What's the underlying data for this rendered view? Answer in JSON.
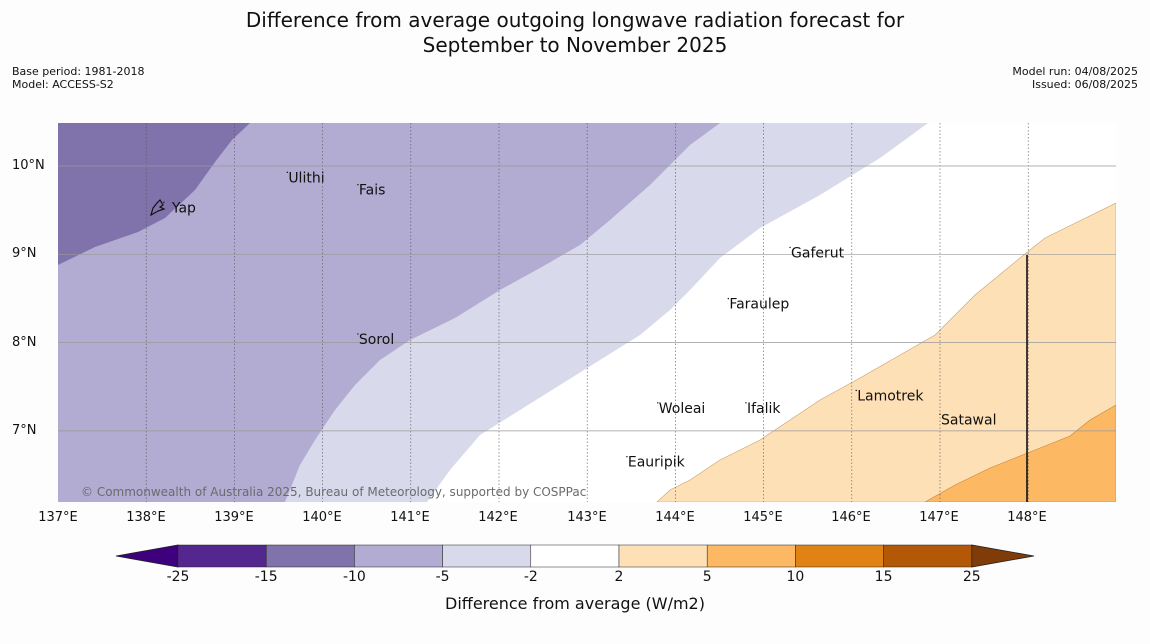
{
  "title_line1": "Difference from average outgoing longwave radiation forecast for",
  "title_line2": "September to November 2025",
  "meta_left": {
    "base_period": "Base period: 1981-2018",
    "model": "Model: ACCESS-S2"
  },
  "meta_right": {
    "model_run": "Model run: 04/08/2025",
    "issued": "Issued: 06/08/2025"
  },
  "lat_labels": [
    "10°N",
    "9°N",
    "8°N",
    "7°N"
  ],
  "lon_labels": [
    "137°E",
    "138°E",
    "139°E",
    "140°E",
    "141°E",
    "142°E",
    "143°E",
    "144°E",
    "145°E",
    "146°E",
    "147°E",
    "148°E"
  ],
  "places": [
    {
      "name": "Yap",
      "lon": 138.2,
      "lat": 9.52
    },
    {
      "name": "Ulithi",
      "lon": 139.6,
      "lat": 9.86
    },
    {
      "name": "Fais",
      "lon": 140.4,
      "lat": 9.72
    },
    {
      "name": "Gaferut",
      "lon": 145.3,
      "lat": 9.01
    },
    {
      "name": "Faraulep",
      "lon": 144.6,
      "lat": 8.43
    },
    {
      "name": "Sorol",
      "lon": 140.4,
      "lat": 8.03
    },
    {
      "name": "Lamotrek",
      "lon": 146.05,
      "lat": 7.39
    },
    {
      "name": "Woleai",
      "lon": 143.8,
      "lat": 7.25
    },
    {
      "name": "Ifalik",
      "lon": 144.8,
      "lat": 7.25
    },
    {
      "name": "Satawal",
      "lon": 147.0,
      "lat": 7.12
    },
    {
      "name": "Eauripik",
      "lon": 143.45,
      "lat": 6.64
    }
  ],
  "copyright": "© Commonwealth of Australia 2025, Bureau of Meteorology, supported by COSPPac",
  "colorbar": {
    "title": "Difference from average (W/m2)",
    "ticks": [
      "-25",
      "-15",
      "-10",
      "-5",
      "-2",
      "2",
      "5",
      "10",
      "15",
      "25"
    ],
    "colors": [
      "#3f007d",
      "#54278f",
      "#8073ac",
      "#b2abd2",
      "#d8daeb",
      "#ffffff",
      "#fee0b6",
      "#fdb863",
      "#e08214",
      "#b35806",
      "#7f3b08"
    ]
  }
}
